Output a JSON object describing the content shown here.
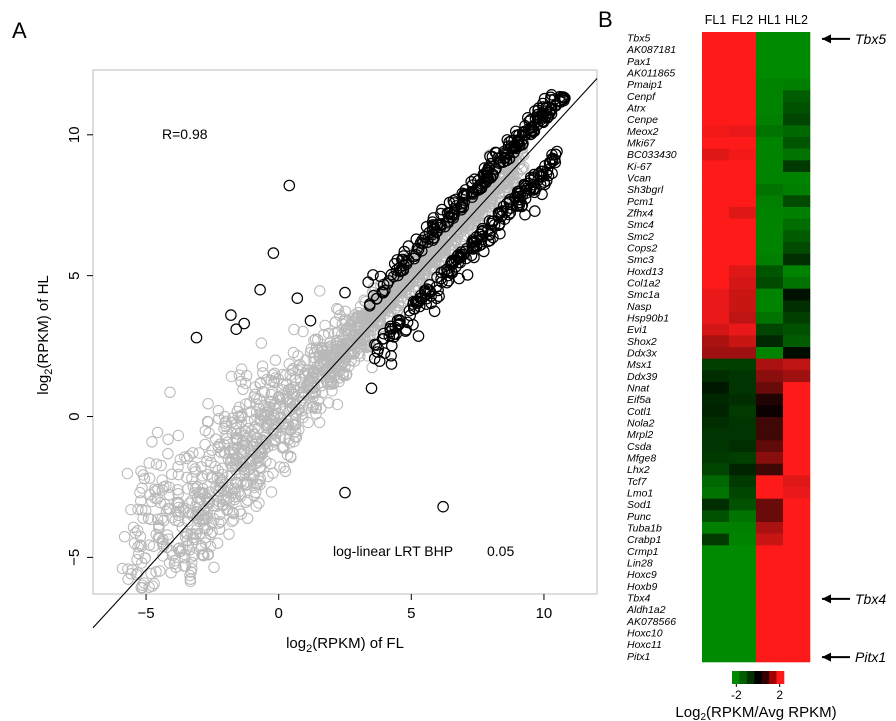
{
  "chart_data": [
    {
      "type": "scatter",
      "panel_label": "A",
      "xlabel": "log2(RPKM) of FL",
      "ylabel": "log2(RPKM) of HL",
      "xlim": [
        -7,
        12
      ],
      "ylim": [
        -6.3,
        12.3
      ],
      "xticks": [
        -5,
        0,
        5,
        10
      ],
      "yticks": [
        -5,
        0,
        5,
        10
      ],
      "xtick_labels": [
        "−5",
        "0",
        "5",
        "10"
      ],
      "ytick_labels": [
        "−5",
        "0",
        "5",
        "10"
      ],
      "annotations": [
        "R=0.98",
        "log-linear LRT BHP",
        "0.05"
      ],
      "fit_line": [
        [
          -7,
          -7.5
        ],
        [
          12,
          12
        ]
      ],
      "colors": {
        "non_significant": "#b8b8b8",
        "significant": "#000000",
        "line": "#000000"
      },
      "grid": false,
      "outliers_significant": [
        [
          -3.1,
          2.8
        ],
        [
          -1.8,
          3.6
        ],
        [
          -1.6,
          3.1
        ],
        [
          -0.7,
          4.5
        ],
        [
          -1.3,
          3.3
        ],
        [
          0.4,
          8.2
        ],
        [
          -0.2,
          5.8
        ],
        [
          0.7,
          4.2
        ],
        [
          1.2,
          3.4
        ],
        [
          2.5,
          4.4
        ],
        [
          6.2,
          -3.2
        ],
        [
          2.5,
          -2.7
        ],
        [
          3.5,
          1.0
        ]
      ]
    },
    {
      "type": "heatmap",
      "panel_label": "B",
      "columns": [
        "FL1",
        "FL2",
        "HL1",
        "HL2"
      ],
      "rows": [
        "Tbx5",
        "AK087181",
        "Pax1",
        "AK011865",
        "Pmaip1",
        "Cenpf",
        "Atrx",
        "Cenpe",
        "Meox2",
        "Mki67",
        "BC033430",
        "Ki-67",
        "Vcan",
        "Sh3bgrl",
        "Pcm1",
        "Zfhx4",
        "Smc4",
        "Smc2",
        "Cops2",
        "Smc3",
        "Hoxd13",
        "Col1a2",
        "Smc1a",
        "Nasp",
        "Hsp90b1",
        "Evi1",
        "Shox2",
        "Ddx3x",
        "Msx1",
        "Ddx39",
        "Nnat",
        "Eif5a",
        "Cotl1",
        "Nola2",
        "Mrpl2",
        "Csda",
        "Mfge8",
        "Lhx2",
        "Tcf7",
        "Lmo1",
        "Sod1",
        "Punc",
        "Tuba1b",
        "Crabp1",
        "Crmp1",
        "Lin28",
        "Hoxc9",
        "Hoxb9",
        "Tbx4",
        "Aldh1a2",
        "AK078566",
        "Hoxc10",
        "Hoxc11",
        "Pitx1"
      ],
      "values": [
        [
          2.4,
          2.4,
          -2.4,
          -2.4
        ],
        [
          2.4,
          2.4,
          -2.4,
          -2.4
        ],
        [
          2.4,
          2.4,
          -2.4,
          -2.4
        ],
        [
          2.4,
          2.4,
          -2.4,
          -2.4
        ],
        [
          2.4,
          2.4,
          -2.3,
          -2.2
        ],
        [
          2.4,
          2.4,
          -2.3,
          -1.6
        ],
        [
          2.4,
          2.4,
          -2.3,
          -1.4
        ],
        [
          2.4,
          2.4,
          -2.2,
          -1.2
        ],
        [
          2.3,
          2.2,
          -2.0,
          -1.8
        ],
        [
          2.4,
          2.4,
          -2.3,
          -1.5
        ],
        [
          2.1,
          2.3,
          -2.3,
          -2.0
        ],
        [
          2.4,
          2.4,
          -2.3,
          -1.0
        ],
        [
          2.4,
          2.4,
          -2.3,
          -2.3
        ],
        [
          2.4,
          2.4,
          -2.0,
          -2.2
        ],
        [
          2.4,
          2.4,
          -2.2,
          -1.3
        ],
        [
          2.4,
          2.1,
          -2.3,
          -2.2
        ],
        [
          2.4,
          2.4,
          -2.3,
          -1.9
        ],
        [
          2.4,
          2.4,
          -2.3,
          -1.6
        ],
        [
          2.4,
          2.4,
          -2.3,
          -1.3
        ],
        [
          2.4,
          2.4,
          -2.2,
          -0.8
        ],
        [
          2.4,
          2.1,
          -1.5,
          -2.3
        ],
        [
          2.4,
          2.0,
          -1.3,
          -2.0
        ],
        [
          2.2,
          1.9,
          -2.3,
          -0.3
        ],
        [
          2.2,
          1.9,
          -2.3,
          -0.8
        ],
        [
          2.2,
          1.8,
          -2.0,
          -1.1
        ],
        [
          2.0,
          2.2,
          -1.2,
          -1.4
        ],
        [
          1.6,
          1.9,
          -0.7,
          -1.6
        ],
        [
          1.5,
          1.5,
          -2.3,
          -0.2
        ],
        [
          -1.1,
          -1.1,
          1.6,
          1.8
        ],
        [
          -0.8,
          -0.9,
          1.3,
          1.5
        ],
        [
          -0.4,
          -0.9,
          1.0,
          2.4
        ],
        [
          -0.7,
          -0.8,
          0.3,
          2.4
        ],
        [
          -0.6,
          -1.0,
          0.1,
          2.4
        ],
        [
          -0.8,
          -0.9,
          0.6,
          2.4
        ],
        [
          -0.9,
          -0.9,
          0.6,
          2.4
        ],
        [
          -0.9,
          -0.8,
          0.9,
          2.4
        ],
        [
          -1.0,
          -1.1,
          1.3,
          2.4
        ],
        [
          -1.2,
          -0.6,
          0.6,
          2.4
        ],
        [
          -1.8,
          -1.0,
          2.4,
          2.1
        ],
        [
          -2.0,
          -1.2,
          2.4,
          2.2
        ],
        [
          -0.8,
          -1.4,
          1.0,
          2.4
        ],
        [
          -1.4,
          -2.0,
          1.0,
          2.4
        ],
        [
          -2.2,
          -2.2,
          1.6,
          2.4
        ],
        [
          -1.0,
          -2.3,
          1.9,
          2.4
        ],
        [
          -2.4,
          -2.4,
          2.4,
          2.4
        ],
        [
          -2.4,
          -2.4,
          2.4,
          2.4
        ],
        [
          -2.4,
          -2.4,
          2.4,
          2.4
        ],
        [
          -2.4,
          -2.4,
          2.4,
          2.4
        ],
        [
          -2.4,
          -2.4,
          2.4,
          2.4
        ],
        [
          -2.4,
          -2.4,
          2.4,
          2.4
        ],
        [
          -2.4,
          -2.4,
          2.4,
          2.4
        ],
        [
          -2.4,
          -2.4,
          2.4,
          2.4
        ],
        [
          -2.4,
          -2.4,
          2.4,
          2.4
        ],
        [
          -2.4,
          -2.4,
          2.4,
          2.4
        ]
      ],
      "callouts": [
        "Tbx5",
        "Tbx4",
        "Pitx1"
      ],
      "colorbar": {
        "ticks": [
          -2,
          2
        ],
        "tick_labels": [
          "-2",
          "2"
        ],
        "label": "Log2(RPKM/Avg RPKM)",
        "colors": [
          "#008a00",
          "#005f00",
          "#003200",
          "#000000",
          "#320000",
          "#a00000",
          "#ff1a1a"
        ]
      },
      "colors": {
        "low": "#008a00",
        "mid": "#000000",
        "high": "#ff1a1a"
      }
    }
  ]
}
